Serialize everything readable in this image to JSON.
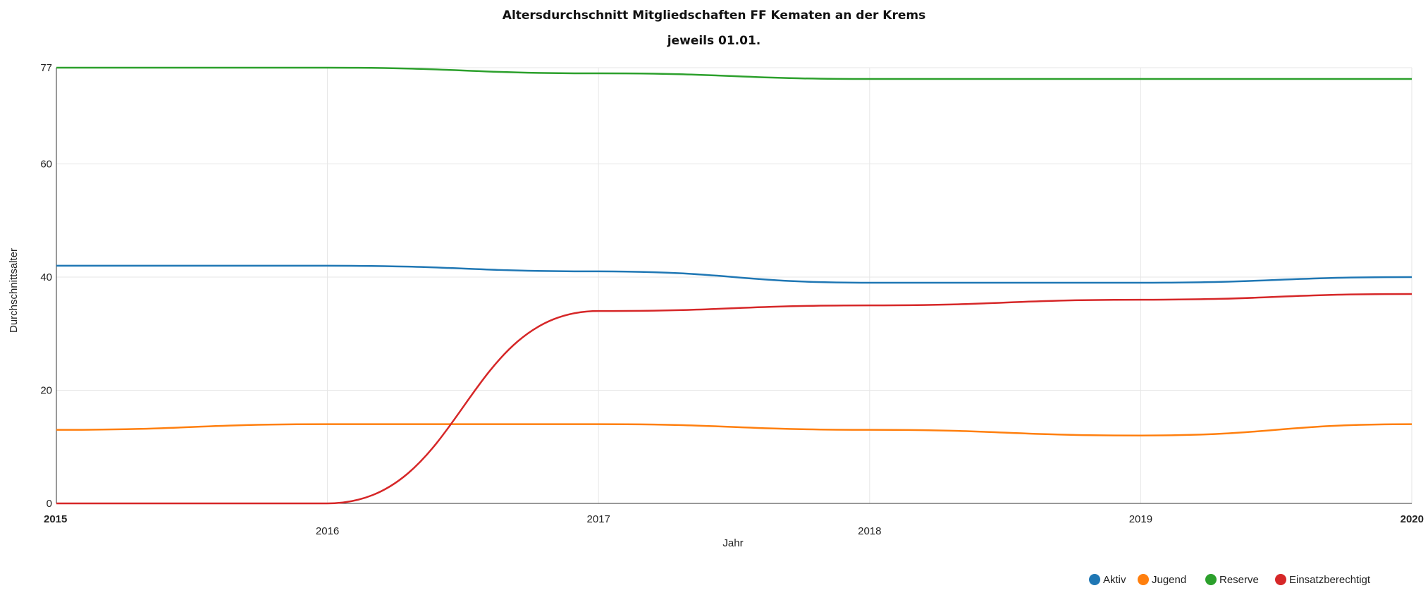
{
  "chart_data": {
    "type": "line",
    "title": "Altersdurchschnitt Mitgliedschaften FF Kematen an der Krems",
    "subtitle": "jeweils 01.01.",
    "xlabel": "Jahr",
    "ylabel": "Durchschnittsalter",
    "x": [
      2015,
      2016,
      2017,
      2018,
      2019,
      2020
    ],
    "x_tick_labels": [
      "2015",
      "2016",
      "2017",
      "2018",
      "2019",
      "2020"
    ],
    "y_tick_labels": [
      "0",
      "20",
      "40",
      "60",
      "77"
    ],
    "y_ticks": [
      0,
      20,
      40,
      60,
      77
    ],
    "ylim": [
      0,
      77
    ],
    "grid": true,
    "legend_position": "bottom-right",
    "series": [
      {
        "name": "Aktiv",
        "color": "#1f77b4",
        "values": [
          42,
          42,
          41,
          39,
          39,
          40
        ]
      },
      {
        "name": "Jugend",
        "color": "#ff7f0e",
        "values": [
          13,
          14,
          14,
          13,
          12,
          14
        ]
      },
      {
        "name": "Reserve",
        "color": "#2ca02c",
        "values": [
          77,
          77,
          76,
          75,
          75,
          75
        ]
      },
      {
        "name": "Einsatzberechtigt",
        "color": "#d62728",
        "values": [
          0,
          0,
          34,
          35,
          36,
          37
        ]
      }
    ]
  }
}
